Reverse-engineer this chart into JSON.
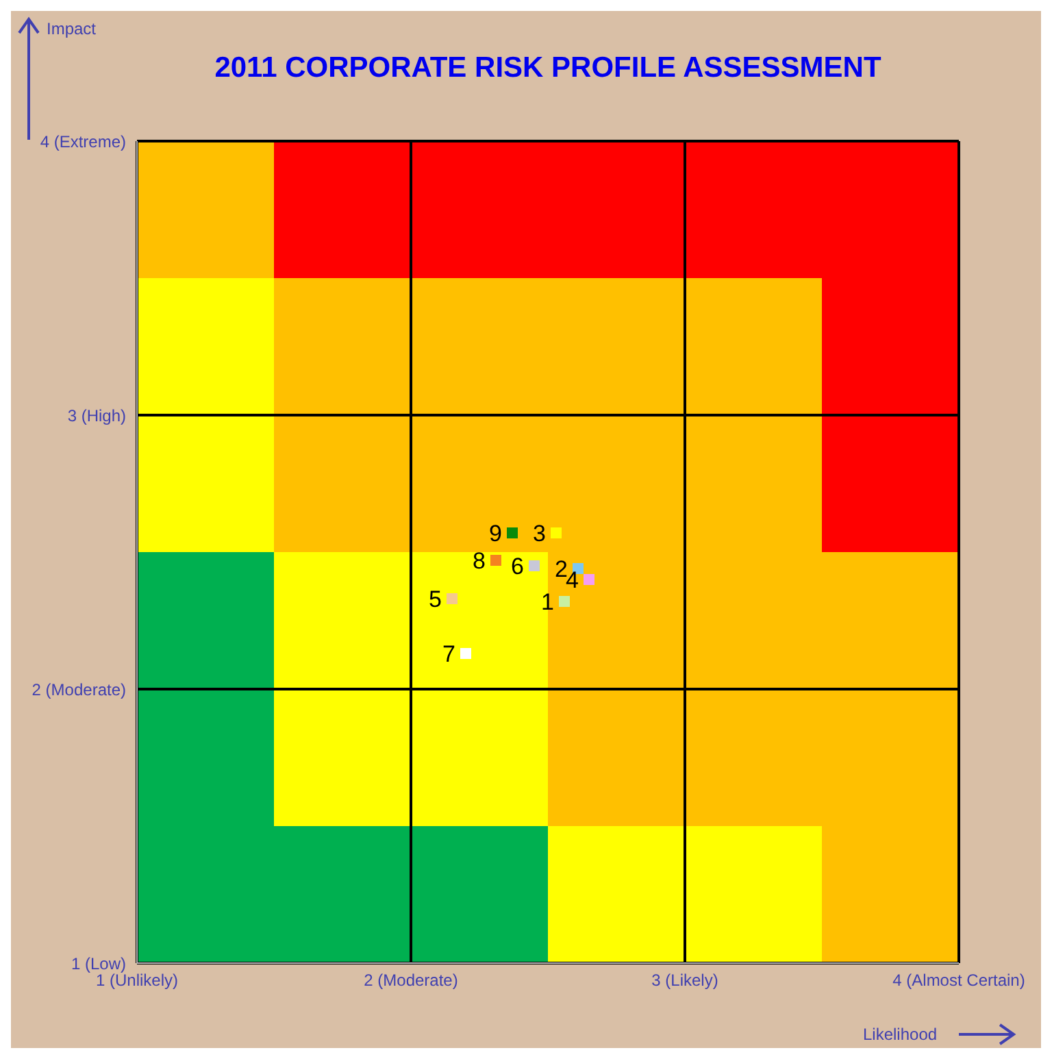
{
  "chart_data": {
    "type": "scatter",
    "title": "2011 CORPORATE RISK PROFILE ASSESSMENT",
    "xlabel": "Likelihood",
    "annotations": [
      "Impact"
    ],
    "xlim": [
      1,
      4
    ],
    "xticks": [
      {
        "value": 1,
        "label": "1 (Unlikely)"
      },
      {
        "value": 2,
        "label": "2 (Moderate)"
      },
      {
        "value": 3,
        "label": "3 (Likely)"
      },
      {
        "value": 4,
        "label": "4 (Almost Certain)"
      }
    ],
    "ylim": [
      1,
      4
    ],
    "yticks": [
      {
        "value": 1,
        "label": "1 (Low)"
      },
      {
        "value": 2,
        "label": "2 (Moderate)"
      },
      {
        "value": 3,
        "label": "3 (High)"
      },
      {
        "value": 4,
        "label": "4 (Extreme)"
      }
    ],
    "grid": true,
    "marker": "square",
    "series": [
      {
        "type": "histogram",
        "color": "#00b050",
        "bins": [
          1,
          1.5,
          2.5
        ],
        "base": [
          1,
          1
        ],
        "values": [
          1.5,
          0.5
        ]
      },
      {
        "type": "histogram",
        "color": "#ffff00",
        "bins": [
          1,
          1.5,
          2.5,
          3.5
        ],
        "base": [
          2.5,
          1.5,
          1
        ],
        "values": [
          1,
          1,
          0.5
        ]
      },
      {
        "type": "histogram",
        "color": "#ffc000",
        "bins": [
          1,
          1.5,
          2.5,
          3.5,
          4
        ],
        "base": [
          3.5,
          2.5,
          1.5,
          1
        ],
        "values": [
          0.5,
          1,
          2,
          1.5
        ]
      },
      {
        "type": "histogram",
        "color": "#ff0000",
        "bins": [
          1.5,
          3.5,
          4
        ],
        "base": [
          3.5,
          2.5
        ],
        "values": [
          0.5,
          1.5
        ]
      },
      {
        "name": "1",
        "color": "#c8f0a0",
        "x": [
          2.56
        ],
        "values": [
          2.32
        ]
      },
      {
        "name": "2",
        "color": "#7ec8f0",
        "x": [
          2.61
        ],
        "values": [
          2.44
        ]
      },
      {
        "name": "3",
        "color": "#ffff00",
        "x": [
          2.53
        ],
        "values": [
          2.57
        ]
      },
      {
        "name": "4",
        "color": "#f49ef4",
        "x": [
          2.65
        ],
        "values": [
          2.4
        ]
      },
      {
        "name": "5",
        "color": "#f5c890",
        "x": [
          2.15
        ],
        "values": [
          2.33
        ]
      },
      {
        "name": "6",
        "color": "#c8c8d8",
        "x": [
          2.45
        ],
        "values": [
          2.45
        ]
      },
      {
        "name": "7",
        "color": "#ffffff",
        "x": [
          2.2
        ],
        "values": [
          2.13
        ]
      },
      {
        "name": "8",
        "color": "#f58220",
        "x": [
          2.31
        ],
        "values": [
          2.47
        ]
      },
      {
        "name": "9",
        "color": "#0a8a0a",
        "x": [
          2.37
        ],
        "values": [
          2.57
        ]
      }
    ]
  }
}
